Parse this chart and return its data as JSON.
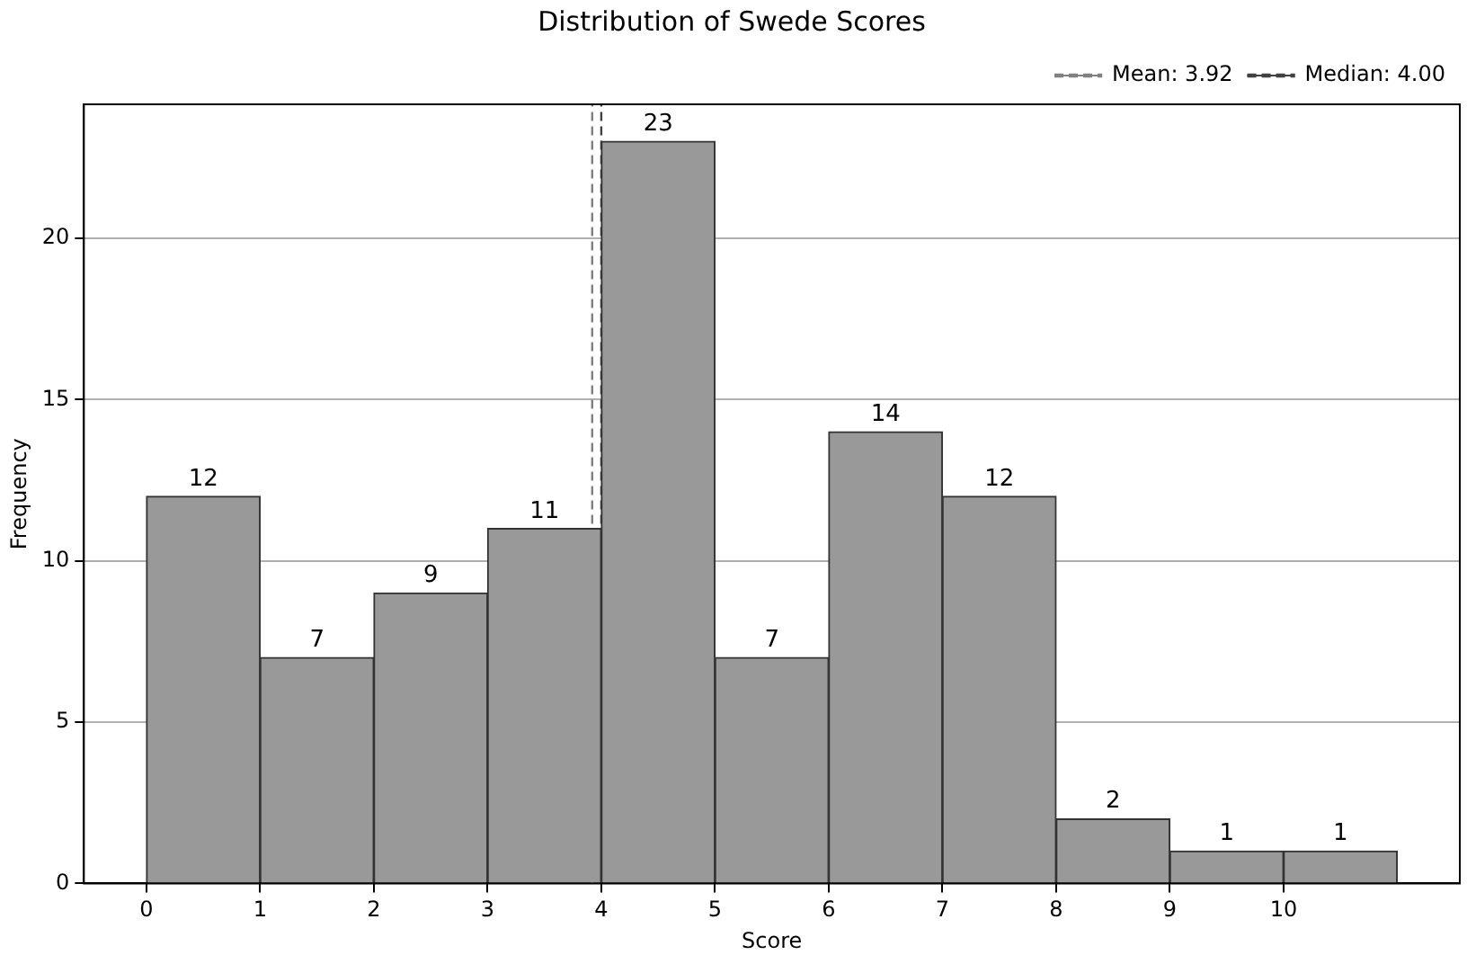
{
  "chart_data": {
    "type": "histogram",
    "title": "Distribution of Swede Scores",
    "xlabel": "Score",
    "ylabel": "Frequency",
    "bins": [
      0,
      1,
      2,
      3,
      4,
      5,
      6,
      7,
      8,
      9,
      10,
      11
    ],
    "values": [
      12,
      7,
      9,
      11,
      23,
      7,
      14,
      12,
      2,
      1,
      1
    ],
    "color": "#999999",
    "xlim": [
      -0.55,
      11.55
    ],
    "xticks": [
      0,
      1,
      2,
      3,
      4,
      5,
      6,
      7,
      8,
      9,
      10
    ],
    "ylim": [
      0,
      24.15
    ],
    "yticks": [
      0,
      5,
      10,
      15,
      20
    ],
    "grid": "y",
    "data_labels": true,
    "legend": "top right",
    "ref_lines": [
      {
        "axis": "x",
        "value": 3.92,
        "label": "Mean: 3.92",
        "color": "#808080",
        "line_style": "dashed"
      },
      {
        "axis": "x",
        "value": 4.0,
        "label": "Median: 4.00",
        "color": "#404040",
        "line_style": "dashed"
      }
    ]
  }
}
